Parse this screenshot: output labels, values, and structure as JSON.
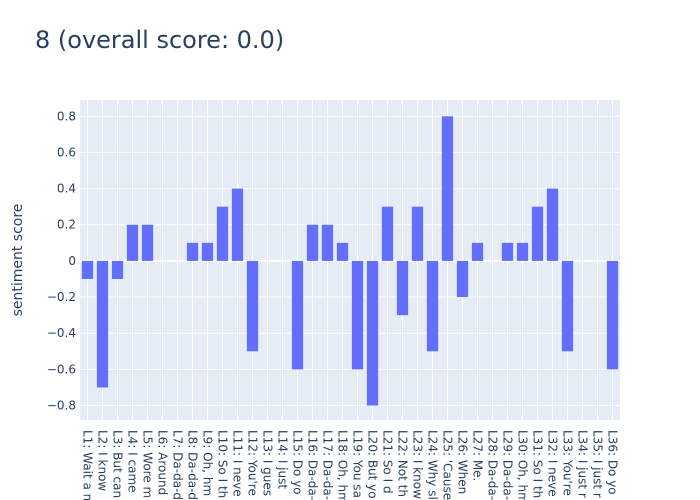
{
  "chart_data": {
    "type": "bar",
    "title": "8 (overall score: 0.0)",
    "xlabel": "",
    "ylabel": "sentiment score",
    "ylim": [
      -0.88,
      0.89
    ],
    "yticks": [
      0.8,
      0.6,
      0.4,
      0.2,
      0,
      -0.2,
      -0.4,
      -0.6,
      -0.8
    ],
    "ytick_labels": [
      "0.8",
      "0.6",
      "0.4",
      "0.2",
      "0",
      "−0.2",
      "−0.4",
      "−0.6",
      "−0.8"
    ],
    "grid": true,
    "colors": {
      "bar": "#636efa",
      "plot_bg": "#e5ecf6",
      "grid": "#ffffff"
    },
    "categories": [
      "L1: Wait a m",
      "L2: I know",
      "L3: But can",
      "L4: I came",
      "L5: Wore m",
      "L6: Around",
      "L7: Da-da-d",
      "L8: Da-da-d",
      "L9: Oh, hm",
      "L10: So I th",
      "L11: I neve",
      "L12: You're",
      "L13: I gues",
      "L14: I just",
      "L15: Do yo",
      "L16: Da-da-",
      "L17: Da-da-",
      "L18: Oh, hm",
      "L19: You sa",
      "L20: But yo",
      "L21: So I d",
      "L22: Not th",
      "L23: I know",
      "L24: Why sl",
      "L25: 'Cause",
      "L26: When",
      "L27: Me.",
      "L28: Da-da-",
      "L29: Da-da-",
      "L30: Oh, hm",
      "L31: So I th",
      "L32: I neve",
      "L33: You're",
      "L34: I just r",
      "L35: I just r",
      "L36: Do yo"
    ],
    "values": [
      -0.1,
      -0.7,
      -0.1,
      0.2,
      0.2,
      0,
      0,
      0.1,
      0.1,
      0.3,
      0.4,
      -0.5,
      0,
      0,
      -0.6,
      0.2,
      0.2,
      0.1,
      -0.6,
      -0.8,
      0.3,
      -0.3,
      0.3,
      -0.5,
      0.8,
      -0.2,
      0.1,
      0,
      0.1,
      0.1,
      0.3,
      0.4,
      -0.5,
      0,
      0,
      -0.6
    ]
  }
}
